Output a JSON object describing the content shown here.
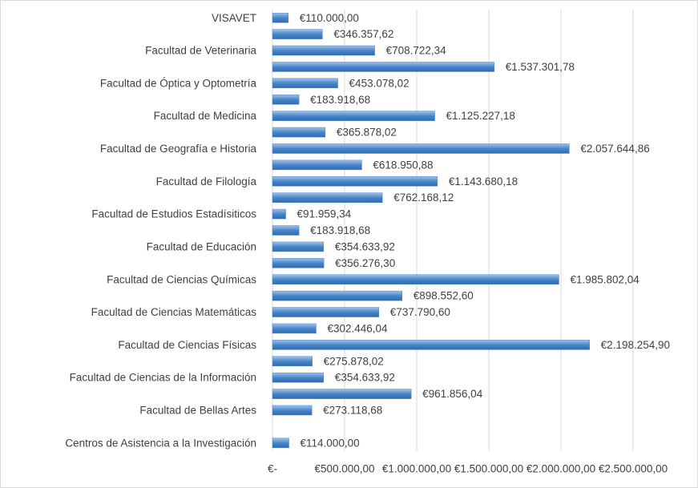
{
  "chart_data": {
    "type": "barh",
    "categories": [
      "VISAVET",
      null,
      "Facultad de Veterinaria",
      null,
      "Facultad de Óptica y Optometría",
      null,
      "Facultad de Medicina",
      null,
      "Facultad de Geografía e Historia",
      null,
      "Facultad de Filología",
      null,
      "Facultad de Estudios Estadísiticos",
      null,
      "Facultad de Educación",
      null,
      "Facultad de Ciencias Químicas",
      null,
      "Facultad de Ciencias Matemáticas",
      null,
      "Facultad de Ciencias Físicas",
      null,
      "Facultad de Ciencias de la Información",
      null,
      "Facultad de Bellas Artes",
      null,
      "Centros de Asistencia a la Investigación"
    ],
    "values": [
      110000,
      346357.62,
      708722.34,
      1537301.78,
      453078.02,
      183918.68,
      1125227.18,
      365878.02,
      2057644.86,
      618950.88,
      1143680.18,
      762168.12,
      91959.34,
      183918.68,
      354633.92,
      356276.3,
      1985802.04,
      898552.6,
      737790.6,
      302446.04,
      2198254.9,
      275878.02,
      354633.92,
      961856.04,
      273118.68,
      null,
      114000
    ],
    "value_labels": [
      "€110.000,00",
      "€346.357,62",
      "€708.722,34",
      "€1.537.301,78",
      "€453.078,02",
      "€183.918,68",
      "€1.125.227,18",
      "€365.878,02",
      "€2.057.644,86",
      "€618.950,88",
      "€1.143.680,18",
      "€762.168,12",
      "€91.959,34",
      "€183.918,68",
      "€354.633,92",
      "€356.276,30",
      "€1.985.802,04",
      "€898.552,60",
      "€737.790,60",
      "€302.446,04",
      "€2.198.254,90",
      "€275.878,02",
      "€354.633,92",
      "€961.856,04",
      "€273.118,68",
      null,
      "€114.000,00"
    ],
    "color": "#4a86c8",
    "xlim": [
      0,
      2500000
    ],
    "xticks": [
      {
        "value": 0,
        "label": "€-"
      },
      {
        "value": 500000,
        "label": "€500.000,00"
      },
      {
        "value": 1000000,
        "label": "€1.000.000,00"
      },
      {
        "value": 1500000,
        "label": "€1.500.000,00"
      },
      {
        "value": 2000000,
        "label": "€2.000.000,00"
      },
      {
        "value": 2500000,
        "label": "€2.500.000,00"
      }
    ],
    "grid": true
  }
}
